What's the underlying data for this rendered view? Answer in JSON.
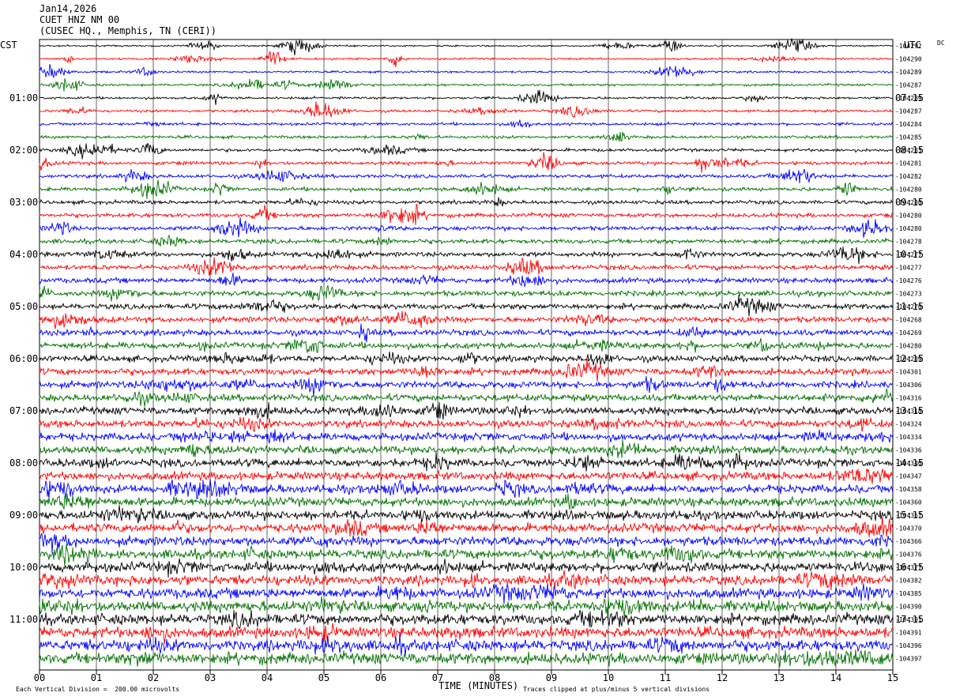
{
  "header": {
    "date": "Jan14,2026",
    "station": "CUET HNZ NM 00",
    "location": "(CUSEC HQ., Memphis, TN (CERI))"
  },
  "left_label": "CST",
  "right_label": "UTC",
  "dc_label": "DC",
  "footer": {
    "scale_note": "Each Vertical Division =  200.00 microvolts",
    "clip_note": "Traces clipped at plus/minus 5 vertical divisions"
  },
  "chart_data": {
    "type": "line",
    "title": "CUET HNZ NM 00",
    "xlabel": "TIME (MINUTES)",
    "xlim": [
      0,
      15
    ],
    "x_ticks": [
      "00",
      "01",
      "02",
      "03",
      "04",
      "05",
      "06",
      "07",
      "08",
      "09",
      "10",
      "11",
      "12",
      "13",
      "14",
      "15"
    ],
    "left_time_labels": [
      "01:00",
      "02:00",
      "03:00",
      "04:00",
      "05:00",
      "06:00",
      "07:00",
      "08:00",
      "09:00",
      "10:00",
      "11:00"
    ],
    "right_time_labels": [
      "07:15",
      "08:15",
      "09:15",
      "10:15",
      "11:15",
      "12:15",
      "13:15",
      "14:15",
      "15:15",
      "16:15",
      "17:15"
    ],
    "trace_colors": [
      "#000000",
      "#ff0000",
      "#0000ff",
      "#007000"
    ],
    "dc_offsets": [
      "-104292",
      "-104290",
      "-104289",
      "-104287",
      "-104289",
      "-104287",
      "-104284",
      "-104285",
      "-104283",
      "-104281",
      "-104282",
      "-104280",
      "-104280",
      "-104280",
      "-104280",
      "-104278",
      "-104277",
      "-104277",
      "-104276",
      "-104273",
      "-104270",
      "-104268",
      "-104269",
      "-104280",
      "-104289",
      "-104301",
      "-104306",
      "-104316",
      "-104318",
      "-104324",
      "-104334",
      "-104336",
      "-104346",
      "-104347",
      "-104358",
      "-104360",
      "-104367",
      "-104370",
      "-104366",
      "-104376",
      "-104377",
      "-104382",
      "-104385",
      "-104390",
      "-104391",
      "-104391",
      "-104396",
      "-104397"
    ]
  }
}
